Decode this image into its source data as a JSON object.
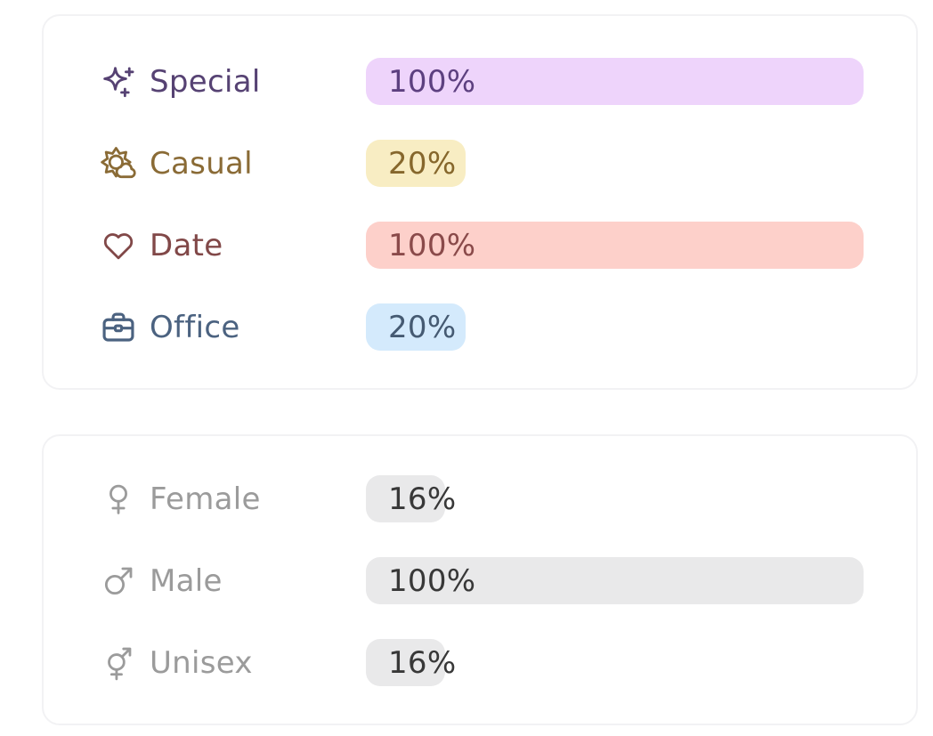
{
  "page": {
    "background": "#ffffff",
    "card_border_color": "#f2f2f4"
  },
  "cards": [
    {
      "name": "occasions",
      "rows": [
        {
          "label": "Special",
          "icon": "sparkles-icon",
          "value": "100%",
          "percent": 100,
          "label_color": "#564273",
          "value_color": "#5d4080",
          "bar_color": "#eed4fb"
        },
        {
          "label": "Casual",
          "icon": "sun-cloud-icon",
          "value": "20%",
          "percent": 20,
          "label_color": "#8a6b36",
          "value_color": "#86672c",
          "bar_color": "#f8edc3"
        },
        {
          "label": "Date",
          "icon": "heart-icon",
          "value": "100%",
          "percent": 100,
          "label_color": "#814848",
          "value_color": "#8a4a4a",
          "bar_color": "#fdd0ca"
        },
        {
          "label": "Office",
          "icon": "briefcase-icon",
          "value": "20%",
          "percent": 20,
          "label_color": "#4b6280",
          "value_color": "#455a72",
          "bar_color": "#d4eafc"
        }
      ]
    },
    {
      "name": "audience",
      "rows": [
        {
          "label": "Female",
          "icon": "female-icon",
          "value": "16%",
          "percent": 16,
          "label_color": "#9b9b9b",
          "value_color": "#383838",
          "bar_color": "#e9e9ea"
        },
        {
          "label": "Male",
          "icon": "male-icon",
          "value": "100%",
          "percent": 100,
          "label_color": "#9b9b9b",
          "value_color": "#383838",
          "bar_color": "#e9e9ea"
        },
        {
          "label": "Unisex",
          "icon": "unisex-icon",
          "value": "16%",
          "percent": 16,
          "label_color": "#9b9b9b",
          "value_color": "#383838",
          "bar_color": "#e9e9ea"
        }
      ]
    }
  ],
  "chart_data": [
    {
      "type": "bar",
      "orientation": "horizontal",
      "categories": [
        "Special",
        "Casual",
        "Date",
        "Office"
      ],
      "values": [
        100,
        20,
        100,
        20
      ],
      "value_labels": [
        "100%",
        "20%",
        "100%",
        "20%"
      ],
      "unit": "%",
      "xlim": [
        0,
        100
      ],
      "title": "",
      "bar_colors": [
        "#eed4fb",
        "#f8edc3",
        "#fdd0ca",
        "#d4eafc"
      ]
    },
    {
      "type": "bar",
      "orientation": "horizontal",
      "categories": [
        "Female",
        "Male",
        "Unisex"
      ],
      "values": [
        16,
        100,
        16
      ],
      "value_labels": [
        "16%",
        "100%",
        "16%"
      ],
      "unit": "%",
      "xlim": [
        0,
        100
      ],
      "title": "",
      "bar_colors": [
        "#e9e9ea",
        "#e9e9ea",
        "#e9e9ea"
      ]
    }
  ]
}
